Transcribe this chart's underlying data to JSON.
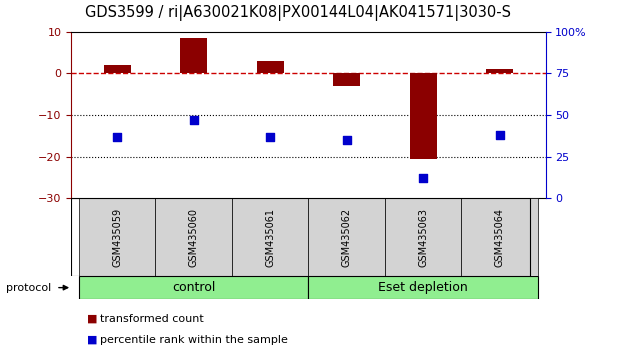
{
  "title": "GDS3599 / ri|A630021K08|PX00144L04|AK041571|3030-S",
  "samples": [
    "GSM435059",
    "GSM435060",
    "GSM435061",
    "GSM435062",
    "GSM435063",
    "GSM435064"
  ],
  "transformed_count": [
    2.0,
    8.5,
    3.0,
    -3.0,
    -20.5,
    1.0
  ],
  "percentile_rank": [
    37,
    47,
    37,
    35,
    12,
    38
  ],
  "left_ylim": [
    -30,
    10
  ],
  "right_ylim": [
    0,
    100
  ],
  "left_yticks": [
    -30,
    -20,
    -10,
    0,
    10
  ],
  "right_yticks": [
    0,
    25,
    50,
    75,
    100
  ],
  "right_yticklabels": [
    "0",
    "25",
    "50",
    "75",
    "100%"
  ],
  "groups": [
    {
      "label": "control",
      "start": 0,
      "end": 2,
      "color": "#90EE90"
    },
    {
      "label": "Eset depletion",
      "start": 3,
      "end": 5,
      "color": "#90EE90"
    }
  ],
  "bar_color": "#8B0000",
  "blue_color": "#0000CC",
  "dashed_line_color": "#CC0000",
  "dotted_line_color": "#000000",
  "title_fontsize": 10.5,
  "tick_fontsize": 8,
  "legend_fontsize": 8,
  "sample_fontsize": 7,
  "group_fontsize": 9,
  "background_color": "#ffffff",
  "group_label_protocol": "protocol",
  "bar_width": 0.35,
  "blue_marker_size": 6,
  "sample_box_color": "#D3D3D3",
  "plot_border_color": "#000000"
}
